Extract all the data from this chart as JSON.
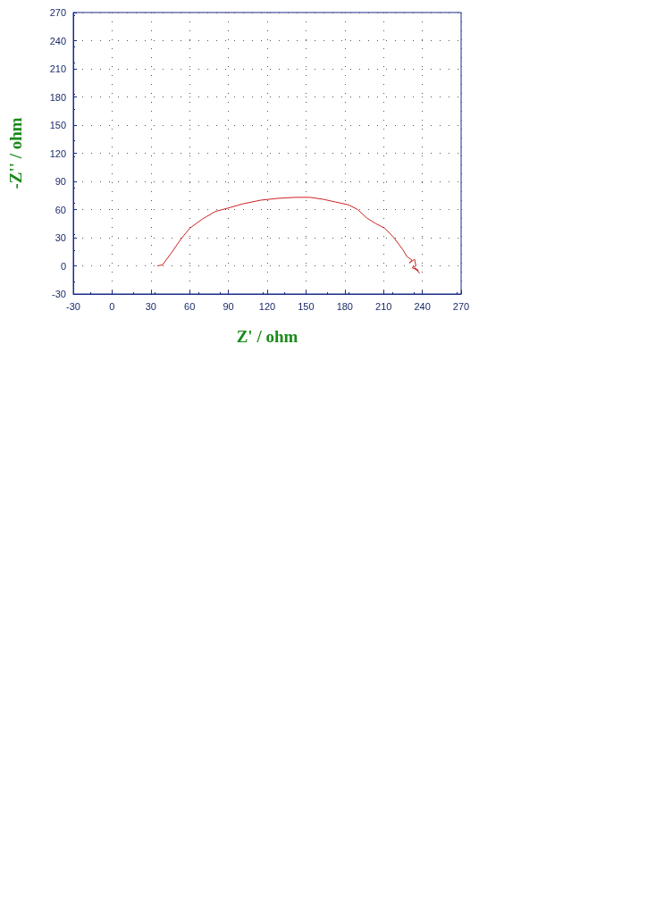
{
  "chart_data": {
    "type": "line",
    "xlabel": "Z' / ohm",
    "ylabel": "-Z'' / ohm",
    "series": [
      {
        "color": "#cc2222",
        "x": [
          35,
          39,
          46,
          53,
          60,
          70,
          80,
          91,
          101,
          115,
          129,
          142,
          153,
          163,
          173,
          183,
          190,
          197,
          204,
          211,
          218,
          225,
          228,
          232,
          230,
          234,
          235,
          232,
          237,
          234,
          238
        ],
        "values": [
          0,
          1,
          14,
          28,
          40,
          50,
          58,
          62,
          66,
          70,
          72,
          73,
          73,
          71,
          68,
          65,
          60,
          51,
          45,
          40,
          30,
          17,
          10,
          6,
          3,
          7,
          0,
          -2,
          -5,
          -2,
          -8
        ]
      }
    ],
    "xlim": [
      -30,
      270
    ],
    "xticks": [
      -30,
      0,
      30,
      60,
      90,
      120,
      150,
      180,
      210,
      240,
      270
    ],
    "ylim": [
      -30,
      270
    ],
    "yticks": [
      -30,
      0,
      30,
      60,
      90,
      120,
      150,
      180,
      210,
      240,
      270
    ],
    "grid": true,
    "marker": "none",
    "line_style": "solid"
  }
}
